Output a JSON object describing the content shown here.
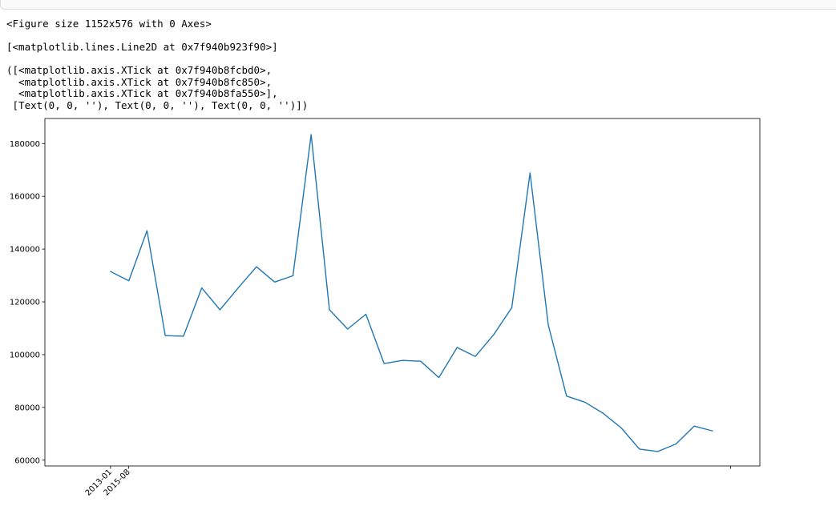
{
  "output": {
    "figure_repr": "<Figure size 1152x576 with 0 Axes>",
    "line_repr": "[<matplotlib.lines.Line2D at 0x7f940b923f90>]",
    "xticks_repr": [
      "([<matplotlib.axis.XTick at 0x7f940b8fcbd0>,",
      "  <matplotlib.axis.XTick at 0x7f940b8fc850>,",
      "  <matplotlib.axis.XTick at 0x7f940b8fa550>],",
      " [Text(0, 0, ''), Text(0, 0, ''), Text(0, 0, '')])"
    ]
  },
  "chart_data": {
    "type": "line",
    "title": "",
    "xlabel": "",
    "ylabel": "",
    "x_index": [
      0,
      1,
      2,
      3,
      4,
      5,
      6,
      7,
      8,
      9,
      10,
      11,
      12,
      13,
      14,
      15,
      16,
      17,
      18,
      19,
      20,
      21,
      22,
      23,
      24,
      25,
      26,
      27,
      28,
      29,
      30,
      31,
      32,
      33
    ],
    "series": [
      {
        "color": "#1f77b4",
        "values": [
          131500,
          128000,
          147000,
          107200,
          107000,
          125300,
          117000,
          125300,
          133300,
          127500,
          129900,
          183400,
          117000,
          109700,
          115300,
          96600,
          97800,
          97500,
          91300,
          102700,
          99300,
          107500,
          117800,
          168900,
          111300,
          84300,
          82000,
          77800,
          72200,
          64200,
          63300,
          66100,
          72900,
          71100
        ]
      }
    ],
    "xticks": [
      {
        "index": 0,
        "label": "2013-01"
      },
      {
        "index": 1,
        "label": "2015-08"
      },
      {
        "index": 34,
        "label": ""
      }
    ],
    "xlim": [
      -3.6,
      35.6
    ],
    "ylim": [
      57800,
      189500
    ],
    "yticks": [
      60000,
      80000,
      100000,
      120000,
      140000,
      160000,
      180000
    ],
    "grid": false
  }
}
